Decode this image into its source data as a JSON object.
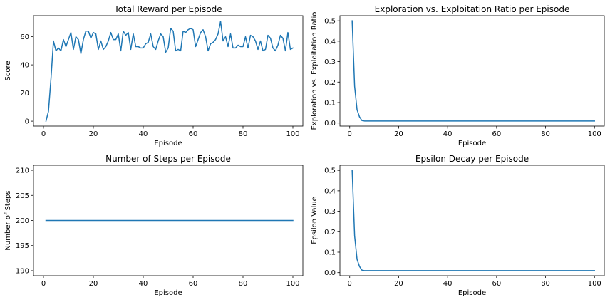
{
  "chart_data": [
    {
      "type": "line",
      "title": "Total Reward per Episode",
      "xlabel": "Episode",
      "ylabel": "Score",
      "xlim": [
        -4,
        104
      ],
      "ylim": [
        -3.5,
        75
      ],
      "xticks": [
        0,
        20,
        40,
        60,
        80,
        100
      ],
      "yticks": [
        0,
        20,
        40,
        60
      ],
      "color": "#1f77b4",
      "x": [
        1,
        2,
        3,
        4,
        5,
        6,
        7,
        8,
        9,
        10,
        11,
        12,
        13,
        14,
        15,
        16,
        17,
        18,
        19,
        20,
        21,
        22,
        23,
        24,
        25,
        26,
        27,
        28,
        29,
        30,
        31,
        32,
        33,
        34,
        35,
        36,
        37,
        38,
        39,
        40,
        41,
        42,
        43,
        44,
        45,
        46,
        47,
        48,
        49,
        50,
        51,
        52,
        53,
        54,
        55,
        56,
        57,
        58,
        59,
        60,
        61,
        62,
        63,
        64,
        65,
        66,
        67,
        68,
        69,
        70,
        71,
        72,
        73,
        74,
        75,
        76,
        77,
        78,
        79,
        80,
        81,
        82,
        83,
        84,
        85,
        86,
        87,
        88,
        89,
        90,
        91,
        92,
        93,
        94,
        95,
        96,
        97,
        98,
        99,
        100
      ],
      "y": [
        0,
        7,
        30,
        57,
        50,
        52,
        50,
        58,
        53,
        58,
        63,
        51,
        60,
        58,
        48,
        58,
        64,
        64,
        59,
        63,
        62,
        51,
        57,
        51,
        53,
        57,
        63,
        58,
        58,
        62,
        50,
        64,
        61,
        63,
        51,
        62,
        53,
        53,
        52,
        52,
        55,
        56,
        62,
        53,
        51,
        57,
        62,
        60,
        49,
        52,
        66,
        64,
        50,
        51,
        50,
        64,
        63,
        65,
        66,
        65,
        53,
        58,
        63,
        65,
        60,
        50,
        55,
        56,
        58,
        62,
        71,
        57,
        60,
        53,
        62,
        52,
        52,
        54,
        53,
        53,
        60,
        52,
        61,
        60,
        57,
        51,
        57,
        50,
        51,
        61,
        59,
        52,
        50,
        54,
        61,
        59,
        50,
        63,
        51,
        52
      ]
    },
    {
      "type": "line",
      "title": "Exploration vs. Exploitation Ratio per Episode",
      "xlabel": "Episode",
      "ylabel": "Exploration vs. Exploitation Ratio",
      "xlim": [
        -4,
        104
      ],
      "ylim": [
        -0.015,
        0.525
      ],
      "xticks": [
        0,
        20,
        40,
        60,
        80,
        100
      ],
      "yticks": [
        0.0,
        0.1,
        0.2,
        0.3,
        0.4,
        0.5
      ],
      "color": "#1f77b4",
      "x": [
        1,
        2,
        3,
        4,
        5,
        6,
        7,
        8,
        9,
        10,
        20,
        30,
        40,
        50,
        60,
        70,
        80,
        90,
        100
      ],
      "y": [
        0.5,
        0.18,
        0.065,
        0.03,
        0.012,
        0.01,
        0.01,
        0.01,
        0.01,
        0.01,
        0.01,
        0.01,
        0.01,
        0.01,
        0.01,
        0.01,
        0.01,
        0.01,
        0.01
      ]
    },
    {
      "type": "line",
      "title": "Number of Steps per Episode",
      "xlabel": "Episode",
      "ylabel": "Number of Steps",
      "xlim": [
        -4,
        104
      ],
      "ylim": [
        189,
        211
      ],
      "xticks": [
        0,
        20,
        40,
        60,
        80,
        100
      ],
      "yticks": [
        190,
        195,
        200,
        205,
        210
      ],
      "color": "#1f77b4",
      "x": [
        1,
        100
      ],
      "y": [
        200,
        200
      ]
    },
    {
      "type": "line",
      "title": "Epsilon Decay per Episode",
      "xlabel": "Episode",
      "ylabel": "Epsilon Value",
      "xlim": [
        -4,
        104
      ],
      "ylim": [
        -0.015,
        0.525
      ],
      "xticks": [
        0,
        20,
        40,
        60,
        80,
        100
      ],
      "yticks": [
        0.0,
        0.1,
        0.2,
        0.3,
        0.4,
        0.5
      ],
      "color": "#1f77b4",
      "x": [
        1,
        2,
        3,
        4,
        5,
        6,
        7,
        8,
        9,
        10,
        20,
        30,
        40,
        50,
        60,
        70,
        80,
        90,
        100
      ],
      "y": [
        0.5,
        0.18,
        0.065,
        0.03,
        0.012,
        0.01,
        0.01,
        0.01,
        0.01,
        0.01,
        0.01,
        0.01,
        0.01,
        0.01,
        0.01,
        0.01,
        0.01,
        0.01,
        0.01
      ]
    }
  ]
}
